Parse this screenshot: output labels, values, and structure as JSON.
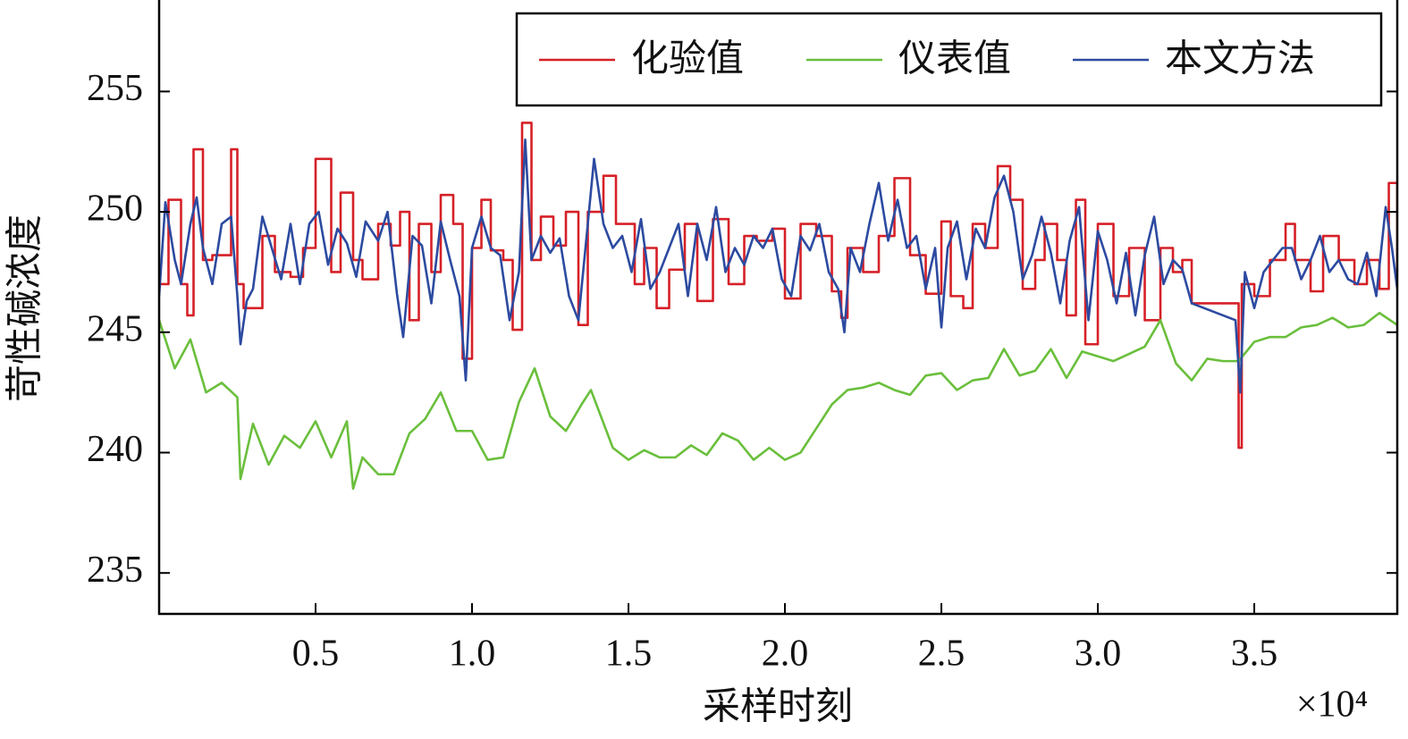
{
  "chart_data": {
    "type": "line",
    "xlabel": "采样时刻",
    "ylabel": "苛性碱浓度",
    "x_multiplier": "×10⁴",
    "xlim": [
      0,
      3.957
    ],
    "ylim": [
      233.3,
      258.8
    ],
    "xticks": [
      0.5,
      {
        "value": 1,
        "label": "1.0"
      },
      1.5,
      {
        "value": 2,
        "label": "2.0"
      },
      2.5,
      {
        "value": 3,
        "label": "3.0"
      },
      3.5
    ],
    "yticks": [
      235,
      240,
      245,
      250,
      255
    ],
    "grid": false,
    "legend": "upper right",
    "series": [
      {
        "name": "化验值",
        "color": "#d62027",
        "step": true,
        "x": [
          0,
          0.03,
          0.07,
          0.09,
          0.11,
          0.14,
          0.17,
          0.23,
          0.25,
          0.27,
          0.3,
          0.33,
          0.37,
          0.42,
          0.46,
          0.5,
          0.55,
          0.58,
          0.62,
          0.65,
          0.7,
          0.74,
          0.77,
          0.8,
          0.83,
          0.87,
          0.9,
          0.94,
          0.97,
          1.0,
          1.03,
          1.06,
          1.1,
          1.13,
          1.16,
          1.19,
          1.22,
          1.26,
          1.3,
          1.34,
          1.37,
          1.42,
          1.46,
          1.52,
          1.55,
          1.59,
          1.63,
          1.68,
          1.72,
          1.77,
          1.82,
          1.87,
          1.91,
          1.96,
          2.0,
          2.05,
          2.1,
          2.15,
          2.18,
          2.2,
          2.25,
          2.3,
          2.35,
          2.4,
          2.45,
          2.5,
          2.53,
          2.57,
          2.6,
          2.64,
          2.68,
          2.72,
          2.76,
          2.8,
          2.83,
          2.87,
          2.9,
          2.93,
          2.96,
          3.0,
          3.05,
          3.1,
          3.15,
          3.2,
          3.24,
          3.27,
          3.3,
          3.45,
          3.46,
          3.5,
          3.55,
          3.6,
          3.63,
          3.68,
          3.72,
          3.77,
          3.82,
          3.86,
          3.9,
          3.93,
          3.957
        ],
        "values": [
          247,
          250.5,
          247,
          245.7,
          252.6,
          248,
          248.2,
          252.6,
          247,
          246,
          246,
          249,
          247.5,
          247.3,
          248.5,
          252.2,
          247.5,
          250.8,
          248,
          247.2,
          249.5,
          248.6,
          250,
          245.5,
          249.5,
          247.5,
          250.7,
          249.5,
          243.9,
          248.5,
          250.5,
          248.4,
          248,
          245.1,
          253.7,
          248,
          249.8,
          248.6,
          250,
          245.3,
          250,
          251.5,
          249.5,
          247,
          248.5,
          246,
          247.6,
          249.5,
          246.3,
          249.7,
          247,
          249,
          248.8,
          249.3,
          246.4,
          249.5,
          249,
          246.7,
          245.6,
          248.5,
          247.5,
          249,
          251.4,
          248.2,
          246.6,
          249.6,
          246.5,
          246,
          249.5,
          248.5,
          251.9,
          250.5,
          246.8,
          248,
          249.5,
          248,
          245.7,
          250.5,
          244.5,
          249.5,
          246.5,
          248.5,
          245.5,
          248.5,
          247.5,
          248,
          246.2,
          240.2,
          247,
          246.5,
          248,
          249.5,
          248,
          246.7,
          249,
          248,
          247,
          248,
          246.8,
          251.2,
          247
        ]
      },
      {
        "name": "仪表值",
        "color": "#6abf3c",
        "x": [
          0,
          0.05,
          0.1,
          0.15,
          0.2,
          0.25,
          0.26,
          0.3,
          0.35,
          0.4,
          0.45,
          0.5,
          0.55,
          0.6,
          0.62,
          0.65,
          0.7,
          0.75,
          0.8,
          0.85,
          0.9,
          0.95,
          1.0,
          1.05,
          1.1,
          1.15,
          1.2,
          1.25,
          1.3,
          1.35,
          1.38,
          1.45,
          1.5,
          1.55,
          1.6,
          1.65,
          1.7,
          1.75,
          1.8,
          1.85,
          1.9,
          1.95,
          2.0,
          2.05,
          2.1,
          2.15,
          2.2,
          2.25,
          2.3,
          2.35,
          2.4,
          2.45,
          2.5,
          2.55,
          2.6,
          2.65,
          2.7,
          2.75,
          2.8,
          2.85,
          2.9,
          2.95,
          3.0,
          3.05,
          3.1,
          3.15,
          3.2,
          3.25,
          3.3,
          3.35,
          3.4,
          3.45,
          3.5,
          3.55,
          3.6,
          3.65,
          3.7,
          3.75,
          3.8,
          3.85,
          3.9,
          3.957
        ],
        "values": [
          245.5,
          243.5,
          244.7,
          242.5,
          242.9,
          242.3,
          238.9,
          241.2,
          239.5,
          240.7,
          240.2,
          241.3,
          239.8,
          241.3,
          238.5,
          239.8,
          239.1,
          239.1,
          240.8,
          241.4,
          242.5,
          240.9,
          240.9,
          239.7,
          239.8,
          242.1,
          243.5,
          241.5,
          240.9,
          242,
          242.6,
          240.2,
          239.7,
          240.1,
          239.8,
          239.8,
          240.3,
          239.9,
          240.8,
          240.5,
          239.7,
          240.2,
          239.7,
          240,
          241,
          242,
          242.6,
          242.7,
          242.9,
          242.6,
          242.4,
          243.2,
          243.3,
          242.6,
          243,
          243.1,
          244.3,
          243.2,
          243.4,
          244.3,
          243.1,
          244.2,
          244,
          243.8,
          244.1,
          244.4,
          245.5,
          243.7,
          243,
          243.9,
          243.8,
          243.8,
          244.6,
          244.8,
          244.8,
          245.2,
          245.3,
          245.6,
          245.2,
          245.3,
          245.8,
          245.3
        ]
      },
      {
        "name": "本文方法",
        "color": "#2c4aa0",
        "x": [
          0,
          0.02,
          0.05,
          0.07,
          0.1,
          0.12,
          0.14,
          0.17,
          0.2,
          0.23,
          0.25,
          0.26,
          0.28,
          0.3,
          0.33,
          0.36,
          0.39,
          0.42,
          0.45,
          0.48,
          0.51,
          0.54,
          0.57,
          0.6,
          0.63,
          0.66,
          0.7,
          0.73,
          0.76,
          0.78,
          0.81,
          0.84,
          0.87,
          0.9,
          0.93,
          0.96,
          0.98,
          1.0,
          1.03,
          1.06,
          1.09,
          1.12,
          1.15,
          1.17,
          1.19,
          1.22,
          1.25,
          1.28,
          1.31,
          1.34,
          1.37,
          1.39,
          1.42,
          1.45,
          1.48,
          1.51,
          1.54,
          1.57,
          1.6,
          1.63,
          1.66,
          1.69,
          1.72,
          1.75,
          1.78,
          1.81,
          1.84,
          1.87,
          1.9,
          1.93,
          1.96,
          1.99,
          2.02,
          2.05,
          2.08,
          2.11,
          2.14,
          2.17,
          2.19,
          2.21,
          2.24,
          2.27,
          2.3,
          2.33,
          2.36,
          2.39,
          2.42,
          2.45,
          2.48,
          2.5,
          2.52,
          2.55,
          2.58,
          2.61,
          2.64,
          2.67,
          2.7,
          2.73,
          2.76,
          2.79,
          2.82,
          2.85,
          2.88,
          2.91,
          2.94,
          2.97,
          3.0,
          3.03,
          3.06,
          3.09,
          3.12,
          3.15,
          3.18,
          3.21,
          3.24,
          3.27,
          3.3,
          3.44,
          3.455,
          3.47,
          3.5,
          3.53,
          3.56,
          3.59,
          3.62,
          3.65,
          3.68,
          3.71,
          3.74,
          3.77,
          3.8,
          3.83,
          3.86,
          3.89,
          3.92,
          3.94,
          3.957
        ],
        "values": [
          246.5,
          250.4,
          248,
          247,
          249.5,
          250.6,
          248.5,
          247,
          249.5,
          249.8,
          246.5,
          244.5,
          246.3,
          246.8,
          249.8,
          248.5,
          247.2,
          249.5,
          247,
          249.5,
          250,
          247.8,
          249.3,
          248.7,
          247.3,
          249.6,
          248.8,
          250,
          246.6,
          244.8,
          249,
          248.6,
          246.2,
          249.6,
          248,
          246.5,
          243,
          248.5,
          249.8,
          248.5,
          248.2,
          245.5,
          247.5,
          253,
          248,
          249,
          248.3,
          248.9,
          246.5,
          245.5,
          249.5,
          252.2,
          249.5,
          248.5,
          249,
          247.5,
          249.7,
          246.8,
          247.5,
          248.5,
          249.5,
          246.5,
          249.5,
          248,
          250.2,
          247.5,
          248.5,
          247.8,
          249,
          248.5,
          249.3,
          247.2,
          246.5,
          249,
          248.4,
          249.5,
          247.5,
          246.8,
          245,
          248.5,
          247.5,
          249.5,
          251.2,
          248.8,
          250.5,
          248.5,
          249,
          246.8,
          248.5,
          245.2,
          248.5,
          249.6,
          247.2,
          249.3,
          248.5,
          250.6,
          251.5,
          250,
          247.2,
          248.2,
          249.8,
          248.3,
          246.2,
          248.8,
          250.2,
          245.5,
          249.2,
          248,
          246.2,
          248.3,
          245.7,
          248.2,
          249.8,
          247,
          248,
          247.6,
          246.2,
          245.5,
          242.5,
          247.5,
          246,
          247.5,
          248,
          248.5,
          248.5,
          247.2,
          248,
          249,
          247.5,
          248,
          247.2,
          247,
          248.3,
          246.5,
          250.2,
          248.5,
          246.8
        ]
      }
    ]
  }
}
